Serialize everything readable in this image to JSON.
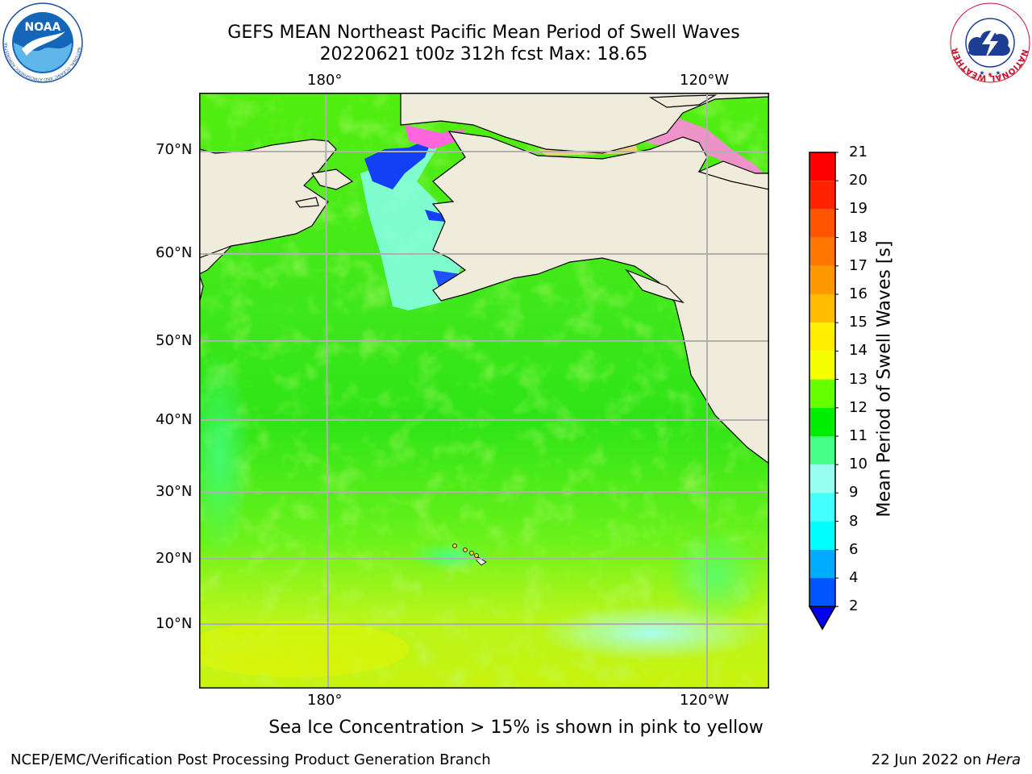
{
  "header": {
    "title_line1": "GEFS MEAN Northeast Pacific Mean Period of Swell Waves",
    "title_line2": "20220621 t00z 312h fcst   Max: 18.65"
  },
  "logos": {
    "noaa": "NOAA",
    "noaa_ring": "NATIONAL OCEANIC AND ATMOSPHERIC ADMINISTRATION · U.S. DEPARTMENT OF COMMERCE",
    "nws_ring": "NATIONAL WEATHER SERVICE"
  },
  "map": {
    "lon_labels_top": [
      "180°",
      "120°W"
    ],
    "lon_labels_bottom": [
      "180°",
      "120°W"
    ],
    "lat_labels": [
      "70°N",
      "60°N",
      "50°N",
      "40°N",
      "30°N",
      "20°N",
      "10°N"
    ],
    "colors": {
      "land": "#efecdc",
      "grid": "#b0b0b0",
      "coast": "#000000"
    }
  },
  "colorbar": {
    "title": "Mean Period of Swell Waves [s]",
    "ticks": [
      "21",
      "20",
      "19",
      "18",
      "17",
      "16",
      "15",
      "14",
      "13",
      "12",
      "11",
      "10",
      "9",
      "8",
      "6",
      "4",
      "2"
    ],
    "colors": [
      "#ff0000",
      "#ff2200",
      "#ff5500",
      "#ff7700",
      "#ff9900",
      "#ffbb00",
      "#ffee00",
      "#f5ff00",
      "#e5ff00",
      "#c8ff00",
      "#66ff00",
      "#00ee00",
      "#44ff88",
      "#99fff0",
      "#44ffff",
      "#00ffff",
      "#00aaff",
      "#0055ff",
      "#0000ee"
    ]
  },
  "caption": "Sea Ice Concentration > 15% is shown in pink to yellow",
  "footer": {
    "left": "NCEP/EMC/Verification Post Processing Product Generation Branch",
    "right_text": "22 Jun 2022 on ",
    "right_italic": "Hera"
  }
}
